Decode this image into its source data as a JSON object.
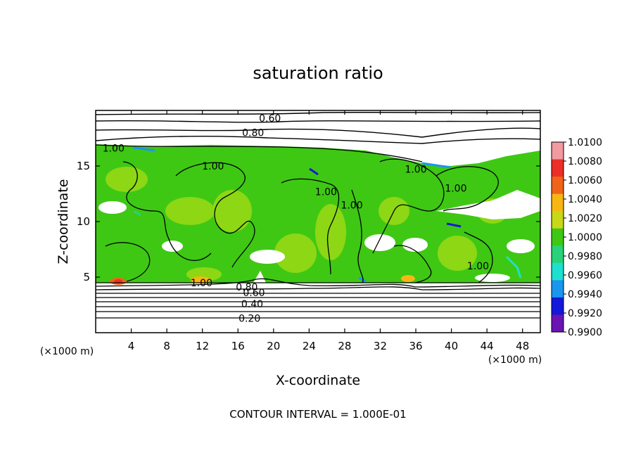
{
  "chart_data": {
    "type": "heatmap",
    "title": "saturation ratio",
    "xlabel": "X-coordinate",
    "ylabel": "Z-coordinate",
    "x_unit_label": "(×1000 m)",
    "y_unit_label": "(×1000 m)",
    "xlim": [
      0,
      50
    ],
    "ylim": [
      0,
      20
    ],
    "x_ticks": [
      4,
      8,
      12,
      16,
      20,
      24,
      28,
      32,
      36,
      40,
      44,
      48
    ],
    "y_ticks": [
      5,
      10,
      15
    ],
    "footer": "CONTOUR INTERVAL = 1.000E-01",
    "colorbar": {
      "labels": [
        "1.0100",
        "1.0080",
        "1.0060",
        "1.0040",
        "1.0020",
        "1.0000",
        "0.9980",
        "0.9960",
        "0.9940",
        "0.9920",
        "0.9900"
      ],
      "colors": [
        "#f29aa0",
        "#ec2e28",
        "#f0641a",
        "#f8b614",
        "#c8d818",
        "#3ec814",
        "#28d27a",
        "#1ee0d0",
        "#1a96ee",
        "#1418d8",
        "#6a14b4"
      ]
    },
    "contour_labels": [
      {
        "text": "0.60",
        "x": 19.6,
        "z": 19.3
      },
      {
        "text": "0.80",
        "x": 17.7,
        "z": 18.0
      },
      {
        "text": "1.00",
        "x": 2.0,
        "z": 16.6
      },
      {
        "text": "1.00",
        "x": 13.2,
        "z": 15.0
      },
      {
        "text": "1.00",
        "x": 25.9,
        "z": 12.7
      },
      {
        "text": "1.00",
        "x": 28.8,
        "z": 11.5
      },
      {
        "text": "1.00",
        "x": 36.0,
        "z": 14.7
      },
      {
        "text": "1.00",
        "x": 40.5,
        "z": 13.0
      },
      {
        "text": "1.00",
        "x": 43.0,
        "z": 6.0
      },
      {
        "text": "1.00",
        "x": 11.9,
        "z": 4.5
      },
      {
        "text": "0.80",
        "x": 17.0,
        "z": 4.1
      },
      {
        "text": "0.60",
        "x": 17.8,
        "z": 3.6
      },
      {
        "text": "0.40",
        "x": 17.6,
        "z": 2.6
      },
      {
        "text": "0.20",
        "x": 17.3,
        "z": 1.3
      }
    ]
  }
}
